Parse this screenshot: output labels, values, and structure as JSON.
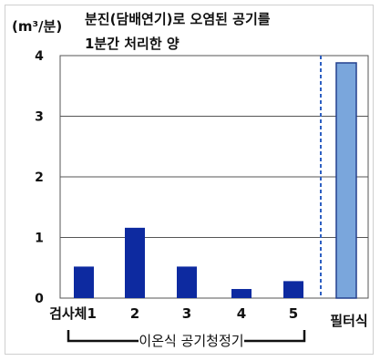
{
  "chart_data": {
    "type": "bar",
    "title": "분진(담배연기)로 오염된 공기를",
    "subtitle": "1분간 처리한 양",
    "ylabel": "(m³/분)",
    "ylim": [
      0,
      4
    ],
    "yticks": [
      "0",
      "1",
      "2",
      "3",
      "4"
    ],
    "grid": true,
    "categories": [
      "검사체1",
      "2",
      "3",
      "4",
      "5",
      "필터식"
    ],
    "values": [
      0.52,
      1.16,
      0.52,
      0.15,
      0.28,
      3.88
    ],
    "group_label": "이온식 공기청정기",
    "colors": {
      "ion_bar": "#0d2aa0",
      "filter_bar": "#7aa6dc",
      "filter_bar_border": "#24408e",
      "separator": "#2d5fc2",
      "grid": "#555555"
    }
  }
}
